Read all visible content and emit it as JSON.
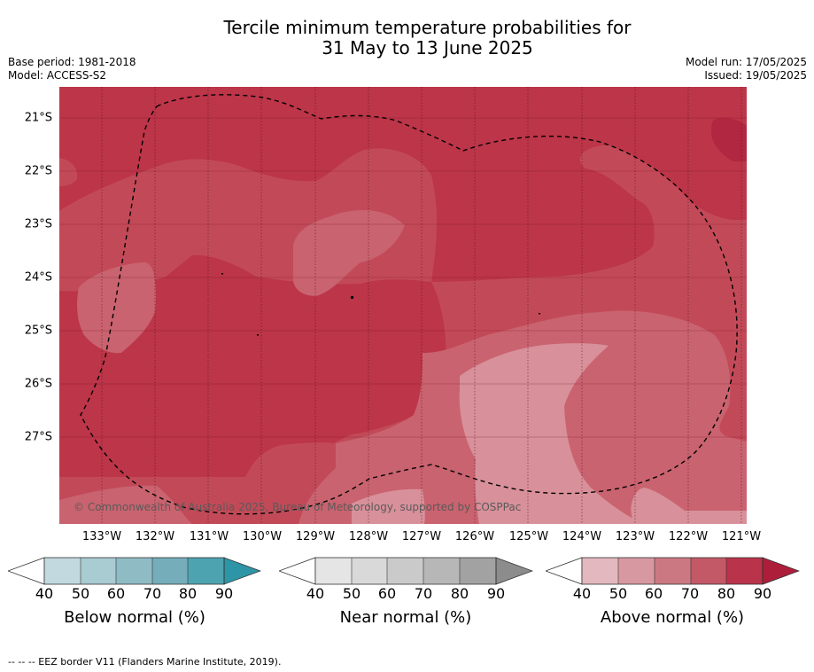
{
  "title": {
    "line1": "Tercile minimum temperature probabilities for",
    "line2": "31 May to 13 June 2025"
  },
  "meta": {
    "base_period": "Base period: 1981-2018",
    "model": "Model: ACCESS-S2",
    "model_run": "Model run: 17/05/2025",
    "issued": "Issued: 19/05/2025"
  },
  "map": {
    "latitudes": [
      "21°S",
      "22°S",
      "23°S",
      "24°S",
      "25°S",
      "26°S",
      "27°S"
    ],
    "longitudes": [
      "133°W",
      "132°W",
      "131°W",
      "130°W",
      "129°W",
      "128°W",
      "127°W",
      "126°W",
      "125°W",
      "124°W",
      "123°W",
      "122°W",
      "121°W"
    ],
    "copyright": "© Commonwealth of Australia 2025, Bureau of Meteorology, supported by COSPPac",
    "colors": {
      "above_90": "#b12640",
      "above_80": "#bc3548",
      "above_70": "#c24a58",
      "above_60": "#c9636f",
      "above_50": "#d8909a",
      "eez": "#000000"
    }
  },
  "colorbars": [
    {
      "name": "below",
      "title": "Below normal (%)",
      "ticks": [
        "40",
        "50",
        "60",
        "70",
        "80",
        "90"
      ],
      "colors": [
        "#c1d9df",
        "#a9cbd2",
        "#8fbbc5",
        "#75aeba",
        "#4ea3b1",
        "#2d95a6"
      ]
    },
    {
      "name": "near",
      "title": "Near normal (%)",
      "ticks": [
        "40",
        "50",
        "60",
        "70",
        "80",
        "90"
      ],
      "colors": [
        "#e5e5e5",
        "#d9d9d9",
        "#cacaca",
        "#b7b7b7",
        "#a2a2a2",
        "#8c8c8c"
      ]
    },
    {
      "name": "above",
      "title": "Above normal (%)",
      "ticks": [
        "40",
        "50",
        "60",
        "70",
        "80",
        "90"
      ],
      "colors": [
        "#e3b8bf",
        "#d898a1",
        "#cc7883",
        "#c35867",
        "#b9334a",
        "#ad1e3a"
      ]
    }
  ],
  "footnote": "--  --  -- EEZ border V11 (Flanders Marine Institute, 2019)."
}
